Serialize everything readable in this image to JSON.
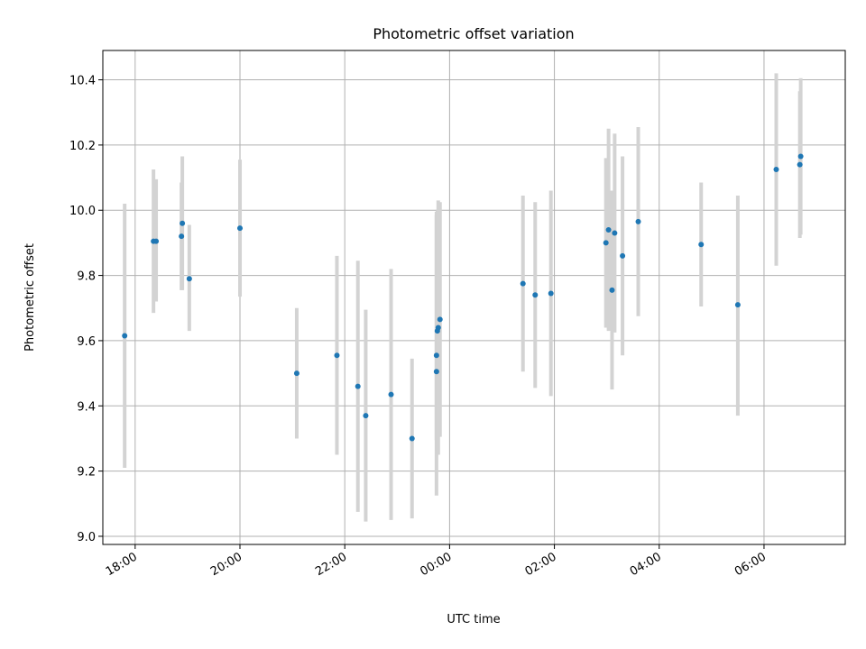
{
  "chart_data": {
    "type": "scatter",
    "title": "Photometric offset variation",
    "xlabel": "UTC time",
    "ylabel": "Photometric offset",
    "xlim": [
      "17:23",
      "07:33"
    ],
    "ylim": [
      8.975,
      10.49
    ],
    "grid": true,
    "x_ticks": [
      "18:00",
      "20:00",
      "22:00",
      "00:00",
      "02:00",
      "04:00",
      "06:00"
    ],
    "y_ticks": [
      "9.0",
      "9.2",
      "9.4",
      "9.6",
      "9.8",
      "10.0",
      "10.2",
      "10.4"
    ],
    "colors": {
      "point": "#1f77b4",
      "errorbar": "#d3d3d3",
      "grid": "#b0b0b0"
    },
    "points": [
      {
        "x": "17:48",
        "y": 9.615,
        "err_low": 0.405,
        "err_high": 0.405
      },
      {
        "x": "18:21",
        "y": 9.905,
        "err_low": 0.22,
        "err_high": 0.22
      },
      {
        "x": "18:24",
        "y": 9.905,
        "err_low": 0.185,
        "err_high": 0.19
      },
      {
        "x": "18:53",
        "y": 9.92,
        "err_low": 0.165,
        "err_high": 0.165
      },
      {
        "x": "18:54",
        "y": 9.96,
        "err_low": 0.205,
        "err_high": 0.205
      },
      {
        "x": "19:02",
        "y": 9.79,
        "err_low": 0.16,
        "err_high": 0.165
      },
      {
        "x": "20:00",
        "y": 9.945,
        "err_low": 0.21,
        "err_high": 0.21
      },
      {
        "x": "21:05",
        "y": 9.5,
        "err_low": 0.2,
        "err_high": 0.2
      },
      {
        "x": "21:51",
        "y": 9.555,
        "err_low": 0.305,
        "err_high": 0.305
      },
      {
        "x": "22:15",
        "y": 9.46,
        "err_low": 0.385,
        "err_high": 0.385
      },
      {
        "x": "22:24",
        "y": 9.37,
        "err_low": 0.325,
        "err_high": 0.325
      },
      {
        "x": "22:53",
        "y": 9.435,
        "err_low": 0.385,
        "err_high": 0.385
      },
      {
        "x": "23:17",
        "y": 9.3,
        "err_low": 0.245,
        "err_high": 0.245
      },
      {
        "x": "23:45",
        "y": 9.505,
        "err_low": 0.21,
        "err_high": 0.49
      },
      {
        "x": "23:45",
        "y": 9.555,
        "err_low": 0.43,
        "err_high": 0.43
      },
      {
        "x": "23:46",
        "y": 9.63,
        "err_low": 0.37,
        "err_high": 0.37
      },
      {
        "x": "23:47",
        "y": 9.64,
        "err_low": 0.39,
        "err_high": 0.39
      },
      {
        "x": "23:49",
        "y": 9.665,
        "err_low": 0.36,
        "err_high": 0.36
      },
      {
        "x": "01:24",
        "y": 9.775,
        "err_low": 0.27,
        "err_high": 0.27
      },
      {
        "x": "01:38",
        "y": 9.74,
        "err_low": 0.285,
        "err_high": 0.285
      },
      {
        "x": "01:56",
        "y": 9.745,
        "err_low": 0.315,
        "err_high": 0.315
      },
      {
        "x": "02:59",
        "y": 9.9,
        "err_low": 0.26,
        "err_high": 0.26
      },
      {
        "x": "03:02",
        "y": 9.94,
        "err_low": 0.31,
        "err_high": 0.31
      },
      {
        "x": "03:06",
        "y": 9.755,
        "err_low": 0.305,
        "err_high": 0.305
      },
      {
        "x": "03:09",
        "y": 9.93,
        "err_low": 0.305,
        "err_high": 0.305
      },
      {
        "x": "03:18",
        "y": 9.86,
        "err_low": 0.305,
        "err_high": 0.305
      },
      {
        "x": "03:36",
        "y": 9.965,
        "err_low": 0.29,
        "err_high": 0.29
      },
      {
        "x": "04:48",
        "y": 9.895,
        "err_low": 0.19,
        "err_high": 0.19
      },
      {
        "x": "05:30",
        "y": 9.71,
        "err_low": 0.34,
        "err_high": 0.335
      },
      {
        "x": "06:14",
        "y": 10.125,
        "err_low": 0.295,
        "err_high": 0.295
      },
      {
        "x": "06:41",
        "y": 10.14,
        "err_low": 0.225,
        "err_high": 0.225
      },
      {
        "x": "06:42",
        "y": 10.165,
        "err_low": 0.24,
        "err_high": 0.24
      }
    ]
  }
}
